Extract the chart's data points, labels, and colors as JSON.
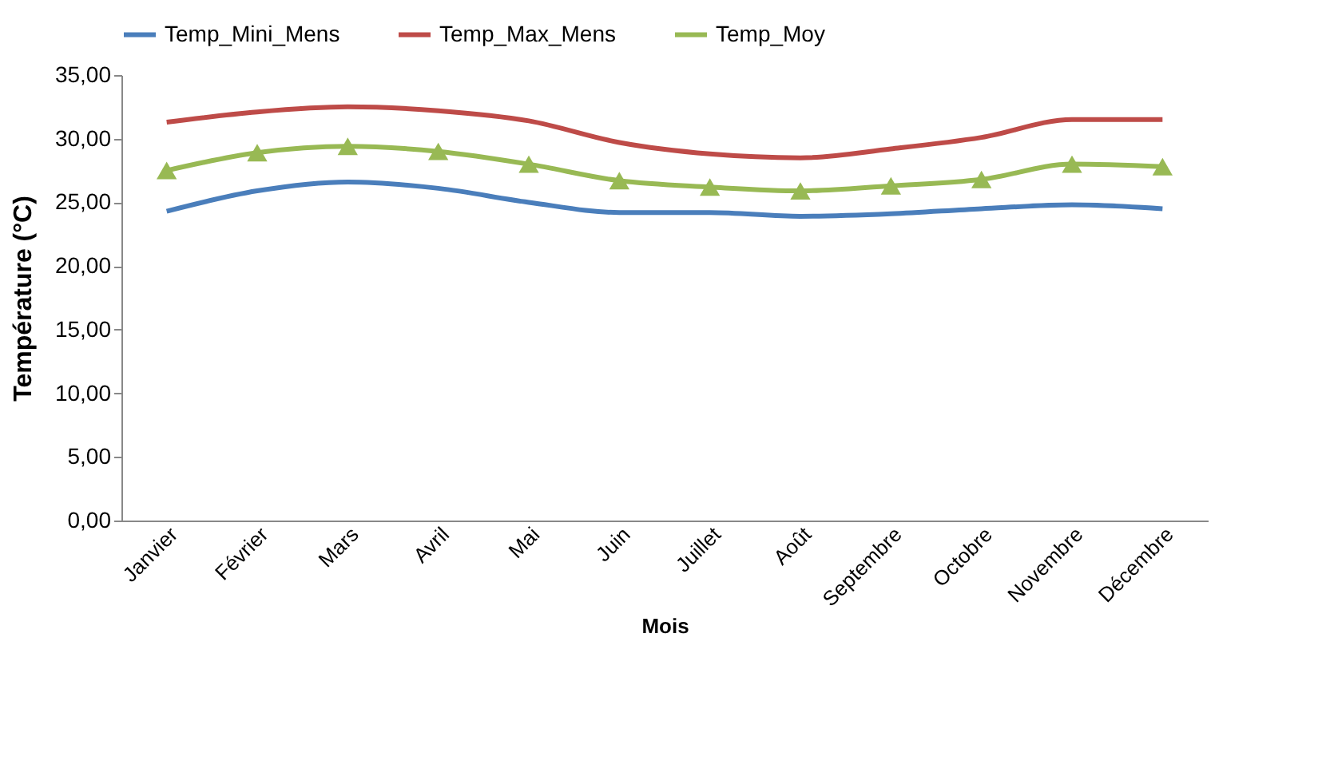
{
  "chart_data": {
    "type": "line",
    "xlabel": "Mois",
    "ylabel": "Température (°C)",
    "categories": [
      "Janvier",
      "Février",
      "Mars",
      "Avril",
      "Mai",
      "Juin",
      "Juillet",
      "Août",
      "Septembre",
      "Octobre",
      "Novembre",
      "Décembre"
    ],
    "series": [
      {
        "name": "Temp_Mini_Mens",
        "color": "#4a7ebb",
        "marker": "none",
        "values": [
          24.3,
          25.9,
          26.6,
          26.1,
          25.0,
          24.2,
          24.2,
          23.9,
          24.1,
          24.5,
          24.8,
          24.5
        ]
      },
      {
        "name": "Temp_Max_Mens",
        "color": "#be4b48",
        "marker": "none",
        "values": [
          31.3,
          32.1,
          32.5,
          32.2,
          31.4,
          29.7,
          28.8,
          28.5,
          29.2,
          30.1,
          31.5,
          31.5
        ]
      },
      {
        "name": "Temp_Moy",
        "color": "#98b954",
        "marker": "triangle",
        "values": [
          27.5,
          28.9,
          29.4,
          29.0,
          28.0,
          26.7,
          26.2,
          25.9,
          26.3,
          26.8,
          28.0,
          27.8
        ]
      }
    ],
    "ylim": [
      0,
      35
    ],
    "yticks": [
      {
        "value": 0,
        "label": "0,00"
      },
      {
        "value": 5,
        "label": "5,00"
      },
      {
        "value": 10,
        "label": "10,00"
      },
      {
        "value": 15,
        "label": "15,00"
      },
      {
        "value": 20,
        "label": "20,00"
      },
      {
        "value": 25,
        "label": "25,00"
      },
      {
        "value": 30,
        "label": "30,00"
      },
      {
        "value": 35,
        "label": "35,00"
      }
    ],
    "grid": false,
    "legend": "top"
  }
}
